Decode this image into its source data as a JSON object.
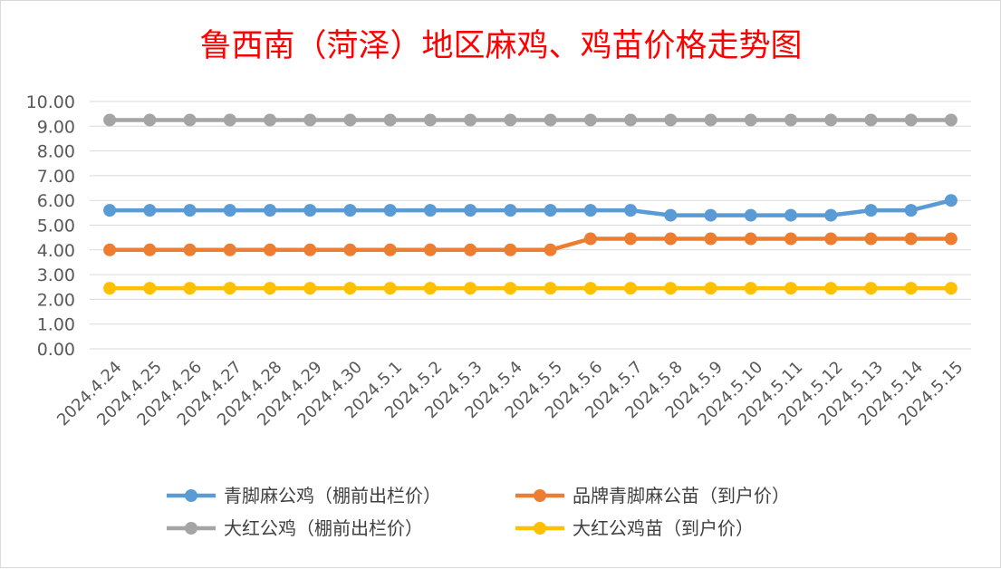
{
  "chart_data": {
    "type": "line",
    "title": "鲁西南（菏泽）地区麻鸡、鸡苗价格走势图",
    "xlabel": "",
    "ylabel": "",
    "ylim": [
      0,
      10
    ],
    "yticks": [
      "0.00",
      "1.00",
      "2.00",
      "3.00",
      "4.00",
      "5.00",
      "6.00",
      "7.00",
      "8.00",
      "9.00",
      "10.00"
    ],
    "grid": true,
    "legend_position": "bottom",
    "categories": [
      "2024.4.24",
      "2024.4.25",
      "2024.4.26",
      "2024.4.27",
      "2024.4.28",
      "2024.4.29",
      "2024.4.30",
      "2024.5.1",
      "2024.5.2",
      "2024.5.3",
      "2024.5.4",
      "2024.5.5",
      "2024.5.6",
      "2024.5.7",
      "2024.5.8",
      "2024.5.9",
      "2024.5.10",
      "2024.5.11",
      "2024.5.12",
      "2024.5.13",
      "2024.5.14",
      "2024.5.15"
    ],
    "series": [
      {
        "name": "青脚麻公鸡（棚前出栏价）",
        "color": "#5b9bd5",
        "values": [
          5.6,
          5.6,
          5.6,
          5.6,
          5.6,
          5.6,
          5.6,
          5.6,
          5.6,
          5.6,
          5.6,
          5.6,
          5.6,
          5.6,
          5.4,
          5.4,
          5.4,
          5.4,
          5.4,
          5.6,
          5.6,
          6.0
        ]
      },
      {
        "name": "品牌青脚麻公苗（到户价）",
        "color": "#ed7d31",
        "values": [
          4.0,
          4.0,
          4.0,
          4.0,
          4.0,
          4.0,
          4.0,
          4.0,
          4.0,
          4.0,
          4.0,
          4.0,
          4.45,
          4.45,
          4.45,
          4.45,
          4.45,
          4.45,
          4.45,
          4.45,
          4.45,
          4.45
        ]
      },
      {
        "name": "大红公鸡（棚前出栏价）",
        "color": "#a5a5a5",
        "values": [
          9.25,
          9.25,
          9.25,
          9.25,
          9.25,
          9.25,
          9.25,
          9.25,
          9.25,
          9.25,
          9.25,
          9.25,
          9.25,
          9.25,
          9.25,
          9.25,
          9.25,
          9.25,
          9.25,
          9.25,
          9.25,
          9.25
        ]
      },
      {
        "name": "大红公鸡苗（到户价）",
        "color": "#ffc000",
        "values": [
          2.45,
          2.45,
          2.45,
          2.45,
          2.45,
          2.45,
          2.45,
          2.45,
          2.45,
          2.45,
          2.45,
          2.45,
          2.45,
          2.45,
          2.45,
          2.45,
          2.45,
          2.45,
          2.45,
          2.45,
          2.45,
          2.45
        ]
      }
    ]
  }
}
